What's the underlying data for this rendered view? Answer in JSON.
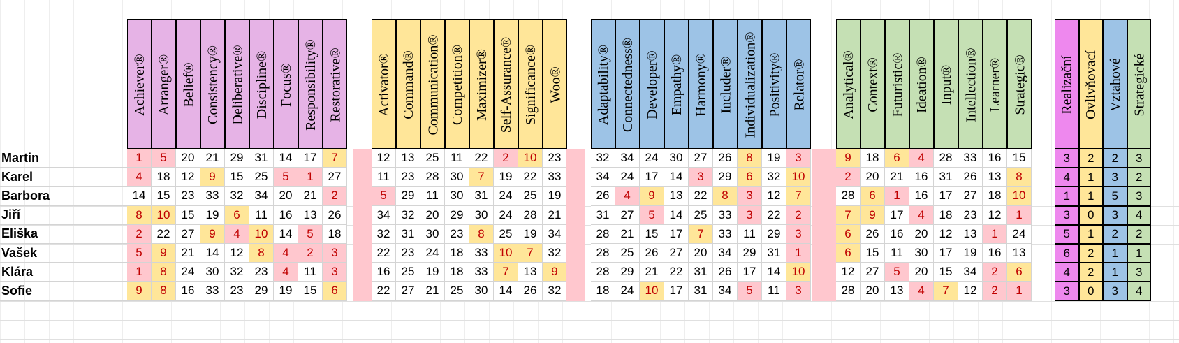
{
  "sheet": {
    "people": [
      "Martin",
      "Karel",
      "Barbora",
      "Jiří",
      "Eliška",
      "Vašek",
      "Klára",
      "Sofie"
    ],
    "groups": [
      {
        "key": "exec",
        "color": "#e6b3e6",
        "strengths": [
          "Achiever®",
          "Arranger®",
          "Belief®",
          "Consistency®",
          "Deliberative®",
          "Discipline®",
          "Focus®",
          "Responsibility®",
          "Restorative®"
        ]
      },
      {
        "key": "infl",
        "color": "#ffe699",
        "strengths": [
          "Activator®",
          "Command®",
          "Communication®",
          "Competition®",
          "Maximizer®",
          "Self-Assurance®",
          "Significance®",
          "Woo®"
        ]
      },
      {
        "key": "rel",
        "color": "#9dc3e6",
        "strengths": [
          "Adaptability®",
          "Connectedness®",
          "Developer®",
          "Empathy®",
          "Harmony®",
          "Includer®",
          "Individualization®",
          "Positivity®",
          "Relator®"
        ]
      },
      {
        "key": "strat",
        "color": "#c5e0b4",
        "strengths": [
          "Analytical®",
          "Context®",
          "Futuristic®",
          "Ideation®",
          "Input®",
          "Intellection®",
          "Learner®",
          "Strategic®"
        ]
      }
    ],
    "rank_rows": [
      [
        [
          1,
          5,
          20,
          21,
          29,
          31,
          14,
          17,
          7
        ],
        [
          12,
          13,
          25,
          11,
          22,
          2,
          10,
          23
        ],
        [
          32,
          34,
          24,
          30,
          27,
          26,
          8,
          19,
          3
        ],
        [
          9,
          18,
          6,
          4,
          28,
          33,
          16,
          15
        ]
      ],
      [
        [
          4,
          18,
          12,
          9,
          15,
          25,
          5,
          1,
          27
        ],
        [
          11,
          23,
          28,
          30,
          7,
          19,
          22,
          33
        ],
        [
          34,
          24,
          17,
          14,
          3,
          29,
          6,
          32,
          10
        ],
        [
          2,
          20,
          21,
          16,
          31,
          26,
          13,
          8
        ]
      ],
      [
        [
          14,
          15,
          23,
          33,
          32,
          34,
          20,
          21,
          2
        ],
        [
          5,
          29,
          11,
          30,
          31,
          24,
          25,
          19
        ],
        [
          26,
          4,
          9,
          13,
          22,
          8,
          3,
          12,
          7
        ],
        [
          28,
          6,
          1,
          16,
          17,
          27,
          18,
          10
        ]
      ],
      [
        [
          8,
          10,
          15,
          19,
          6,
          11,
          16,
          13,
          26
        ],
        [
          34,
          32,
          20,
          29,
          30,
          24,
          28,
          21
        ],
        [
          31,
          27,
          5,
          14,
          25,
          33,
          3,
          22,
          2
        ],
        [
          7,
          9,
          17,
          4,
          18,
          23,
          12,
          1
        ]
      ],
      [
        [
          2,
          22,
          27,
          9,
          4,
          10,
          14,
          5,
          18
        ],
        [
          32,
          31,
          30,
          23,
          8,
          25,
          19,
          34
        ],
        [
          28,
          21,
          15,
          17,
          7,
          33,
          11,
          29,
          3
        ],
        [
          6,
          26,
          16,
          20,
          12,
          13,
          1,
          24
        ]
      ],
      [
        [
          5,
          9,
          21,
          14,
          12,
          8,
          4,
          2,
          3
        ],
        [
          22,
          23,
          24,
          18,
          33,
          10,
          7,
          32
        ],
        [
          28,
          25,
          26,
          27,
          20,
          34,
          29,
          31,
          1
        ],
        [
          6,
          15,
          11,
          30,
          17,
          19,
          16,
          13
        ]
      ],
      [
        [
          1,
          8,
          24,
          30,
          32,
          23,
          4,
          11,
          3
        ],
        [
          16,
          25,
          19,
          18,
          33,
          7,
          13,
          9
        ],
        [
          28,
          29,
          21,
          22,
          31,
          26,
          17,
          14,
          10
        ],
        [
          12,
          27,
          5,
          20,
          15,
          34,
          2,
          6
        ]
      ],
      [
        [
          9,
          8,
          16,
          33,
          23,
          29,
          19,
          15,
          6
        ],
        [
          22,
          27,
          21,
          25,
          30,
          14,
          26,
          32
        ],
        [
          18,
          24,
          10,
          17,
          31,
          34,
          5,
          11,
          3
        ],
        [
          28,
          20,
          13,
          4,
          7,
          12,
          2,
          1
        ]
      ]
    ],
    "summary_headers": [
      "Realizační",
      "Ovlivňovací",
      "Vztahové",
      "Strategické"
    ],
    "summary_colors": [
      "#ee88ee",
      "#ffe699",
      "#9dc3e6",
      "#c5e0b4"
    ],
    "summary_rows": [
      [
        3,
        2,
        2,
        3
      ],
      [
        4,
        1,
        3,
        2
      ],
      [
        1,
        1,
        5,
        3
      ],
      [
        3,
        0,
        3,
        4
      ],
      [
        5,
        1,
        2,
        2
      ],
      [
        6,
        2,
        1,
        1
      ],
      [
        4,
        2,
        1,
        3
      ],
      [
        3,
        0,
        3,
        4
      ]
    ],
    "highlight_colors": {
      "top5": "#ffc7ce",
      "top10": "#ffe699"
    }
  }
}
